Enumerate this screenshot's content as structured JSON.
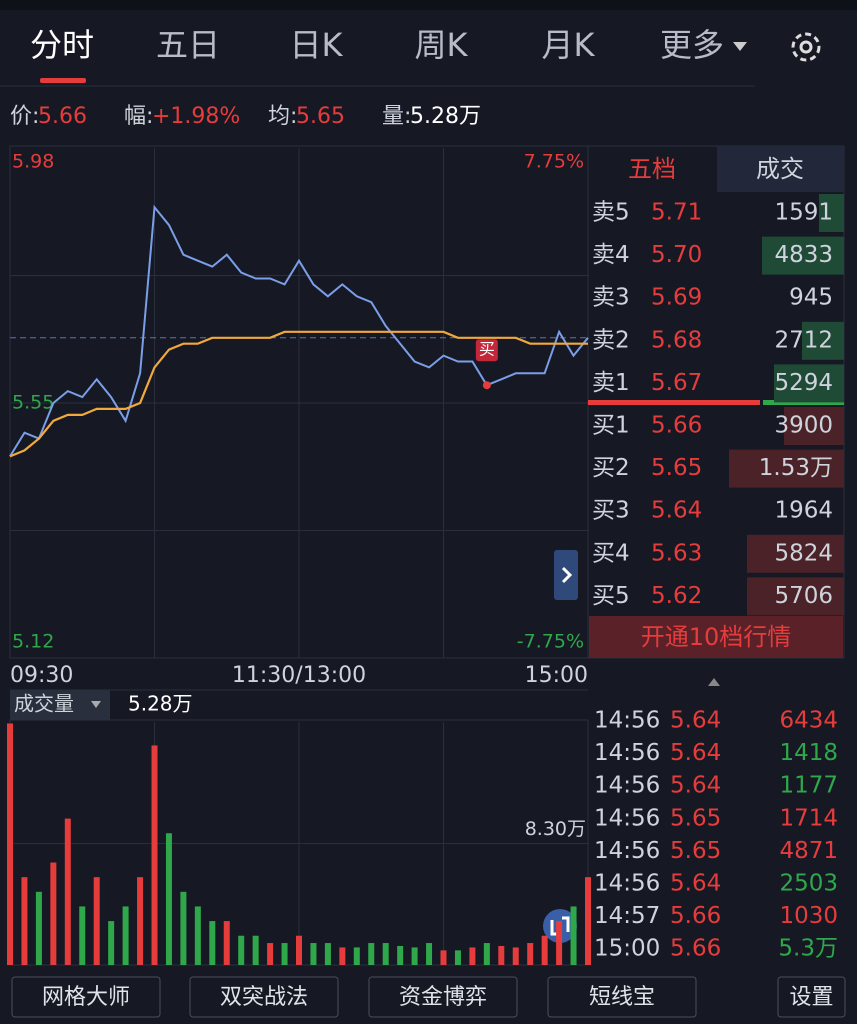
{
  "tabs": [
    "分时",
    "五日",
    "日K",
    "周K",
    "月K",
    "更多"
  ],
  "quote": [
    {
      "label": "价:",
      "value": "5.66"
    },
    {
      "label": "幅:",
      "value": "+1.98%"
    },
    {
      "label": "均:",
      "value": "5.65"
    },
    {
      "label": "量:",
      "value": "5.28万"
    }
  ],
  "chart_data": [
    {
      "type": "line",
      "xlim": [
        0,
        240
      ],
      "xticks": [
        {
          "value": 0,
          "label": "09:30"
        },
        {
          "value": 120,
          "label": "11:30/13:00"
        },
        {
          "value": 240,
          "label": "15:00"
        }
      ],
      "ylim": [
        5.12,
        5.98
      ],
      "yticks": [
        5.12,
        5.55,
        5.98
      ],
      "y2lim": [
        -7.75,
        7.75
      ],
      "y2ticks": [
        {
          "value": -7.75,
          "label": "-7.75%"
        },
        {
          "value": 7.75,
          "label": "7.75%"
        }
      ],
      "x": [
        0,
        6,
        12,
        18,
        24,
        30,
        36,
        42,
        48,
        54,
        60,
        66,
        72,
        78,
        84,
        90,
        96,
        102,
        108,
        114,
        120,
        126,
        132,
        138,
        144,
        150,
        156,
        162,
        168,
        174,
        180,
        186,
        192,
        198,
        204,
        210,
        216,
        222,
        228,
        234,
        240
      ],
      "series": [
        {
          "color": "#7b9ee8",
          "values": [
            5.46,
            5.5,
            5.49,
            5.55,
            5.57,
            5.56,
            5.59,
            5.56,
            5.52,
            5.6,
            5.88,
            5.85,
            5.8,
            5.79,
            5.78,
            5.8,
            5.77,
            5.76,
            5.76,
            5.75,
            5.79,
            5.75,
            5.73,
            5.75,
            5.73,
            5.72,
            5.68,
            5.65,
            5.62,
            5.61,
            5.63,
            5.62,
            5.62,
            5.58,
            5.59,
            5.6,
            5.6,
            5.6,
            5.67,
            5.63,
            5.66
          ]
        },
        {
          "color": "#f2a93b",
          "values": [
            5.46,
            5.47,
            5.49,
            5.52,
            5.53,
            5.53,
            5.54,
            5.54,
            5.54,
            5.55,
            5.61,
            5.64,
            5.65,
            5.65,
            5.66,
            5.66,
            5.66,
            5.66,
            5.66,
            5.67,
            5.67,
            5.67,
            5.67,
            5.67,
            5.67,
            5.67,
            5.67,
            5.67,
            5.67,
            5.67,
            5.67,
            5.66,
            5.66,
            5.66,
            5.66,
            5.66,
            5.65,
            5.65,
            5.65,
            5.65,
            5.65
          ]
        }
      ],
      "annotations": [
        {
          "text": "买",
          "x": 198,
          "y": 5.58
        }
      ]
    },
    {
      "type": "bar",
      "title": "成交量",
      "subtitle": "5.28万",
      "ylim": [
        0,
        16.6
      ],
      "yticks": [
        {
          "value": 8.3,
          "label": "8.30万"
        }
      ],
      "values": [
        16.5,
        6,
        5,
        7,
        10,
        4,
        6,
        3,
        4,
        6,
        15,
        9,
        5,
        4,
        3,
        3,
        2,
        2,
        1.5,
        1.5,
        2,
        1.5,
        1.5,
        1.2,
        1.2,
        1.5,
        1.5,
        1.3,
        1.2,
        1.5,
        1,
        1,
        1.2,
        1.5,
        1.3,
        1.2,
        1.5,
        2,
        3,
        4,
        6
      ],
      "colors": {
        "up": "#e63c3c",
        "down": "#2ea84a"
      }
    }
  ],
  "book": {
    "tabs": [
      "五档",
      "成交"
    ],
    "asks": [
      {
        "label": "卖5",
        "price": "5.71",
        "vol": "1591"
      },
      {
        "label": "卖4",
        "price": "5.70",
        "vol": "4833"
      },
      {
        "label": "卖3",
        "price": "5.69",
        "vol": "945"
      },
      {
        "label": "卖2",
        "price": "5.68",
        "vol": "2712"
      },
      {
        "label": "卖1",
        "price": "5.67",
        "vol": "5294"
      }
    ],
    "bids": [
      {
        "label": "买1",
        "price": "5.66",
        "vol": "3900"
      },
      {
        "label": "买2",
        "price": "5.65",
        "vol": "1.53万"
      },
      {
        "label": "买3",
        "price": "5.64",
        "vol": "1964"
      },
      {
        "label": "买4",
        "price": "5.63",
        "vol": "5824"
      },
      {
        "label": "买5",
        "price": "5.62",
        "vol": "5706"
      }
    ],
    "button": "开通10档行情"
  },
  "trades": [
    {
      "time": "14:56",
      "price": "5.64",
      "vol": "6434",
      "color": "#e63c3c"
    },
    {
      "time": "14:56",
      "price": "5.64",
      "vol": "1418",
      "color": "#2ea84a"
    },
    {
      "time": "14:56",
      "price": "5.64",
      "vol": "1177",
      "color": "#2ea84a"
    },
    {
      "time": "14:56",
      "price": "5.65",
      "vol": "1714",
      "color": "#e63c3c"
    },
    {
      "time": "14:56",
      "price": "5.65",
      "vol": "4871",
      "color": "#e63c3c"
    },
    {
      "time": "14:56",
      "price": "5.64",
      "vol": "2503",
      "color": "#2ea84a"
    },
    {
      "time": "14:57",
      "price": "5.66",
      "vol": "1030",
      "color": "#e63c3c"
    },
    {
      "time": "15:00",
      "price": "5.66",
      "vol": "5.3万",
      "color": "#2ea84a"
    }
  ],
  "buttons": [
    "网格大师",
    "双突战法",
    "资金博弈",
    "短线宝",
    "设置"
  ]
}
